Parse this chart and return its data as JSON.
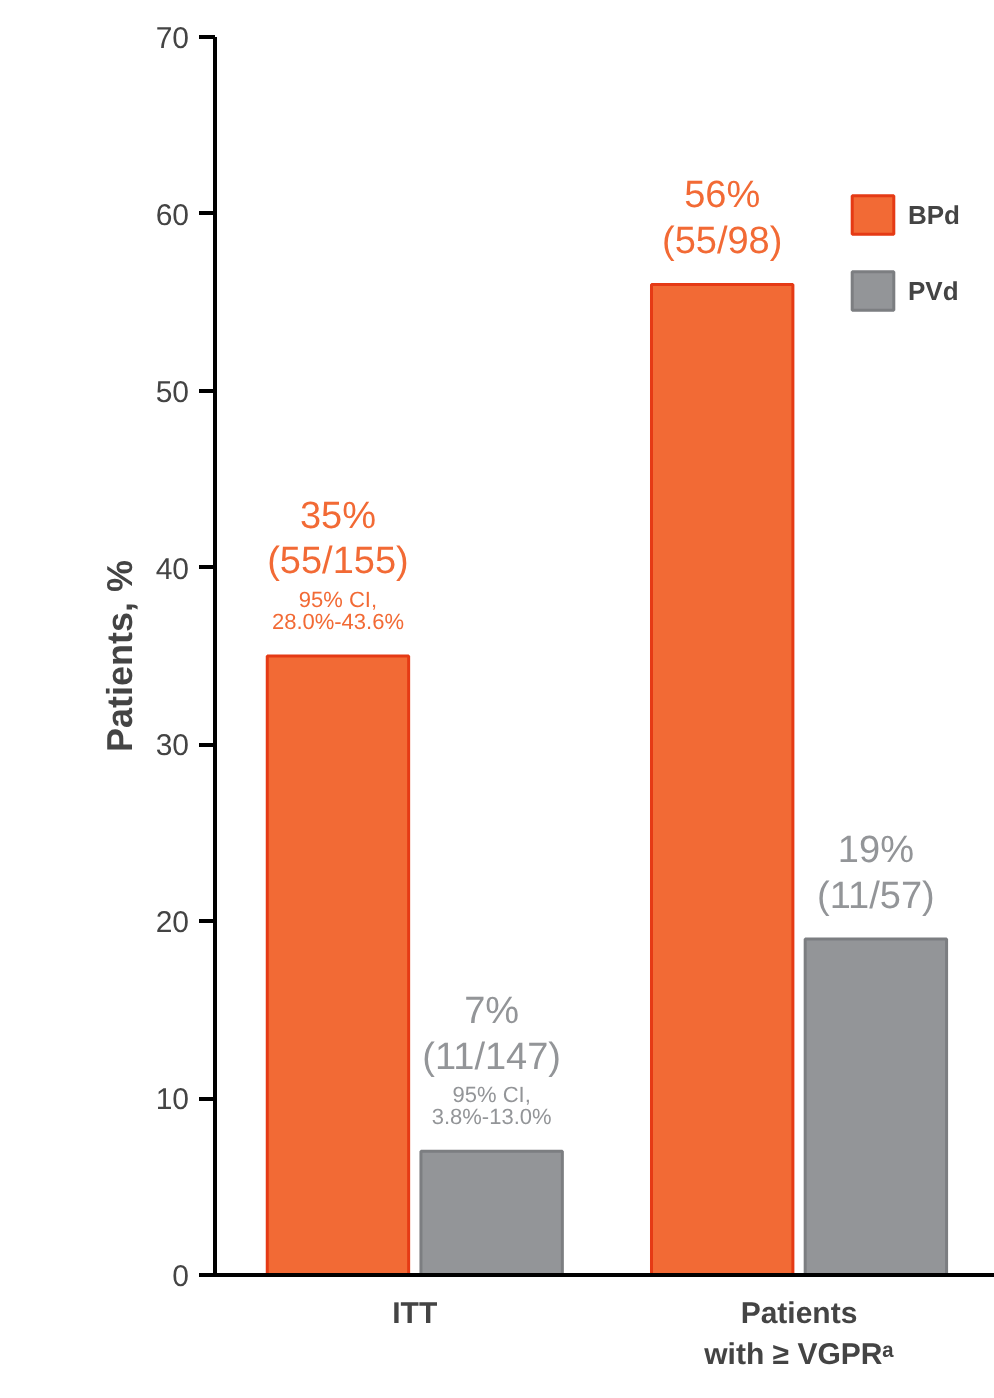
{
  "chart_data": {
    "type": "bar",
    "ylabel": "Patients, %",
    "categories": [
      "ITT",
      "Patients\nwith ≥ VGPRᵃ"
    ],
    "series": [
      {
        "name": "BPd",
        "color": "#f26a35",
        "values": [
          35,
          56
        ],
        "value_labels": [
          "35%\n(55/155)\n95% CI,\n28.0%-43.6%",
          "56%\n(55/98)"
        ]
      },
      {
        "name": "PVd",
        "color": "#939598",
        "values": [
          7,
          19
        ],
        "value_labels": [
          "7%\n(11/147)\n95% CI,\n3.8%-13.0%",
          "19%\n(11/57)"
        ]
      }
    ],
    "ylim": [
      0,
      70
    ],
    "yticks": [
      0,
      10,
      20,
      30,
      40,
      50,
      60,
      70
    ],
    "grid": false,
    "legend": "top right"
  }
}
